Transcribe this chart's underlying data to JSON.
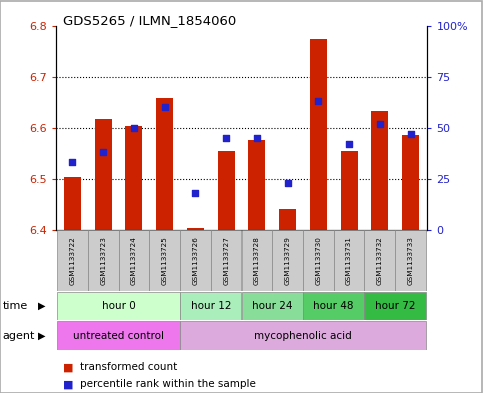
{
  "title": "GDS5265 / ILMN_1854060",
  "samples": [
    "GSM1133722",
    "GSM1133723",
    "GSM1133724",
    "GSM1133725",
    "GSM1133726",
    "GSM1133727",
    "GSM1133728",
    "GSM1133729",
    "GSM1133730",
    "GSM1133731",
    "GSM1133732",
    "GSM1133733"
  ],
  "bar_values": [
    6.504,
    6.617,
    6.603,
    6.658,
    6.403,
    6.554,
    6.575,
    6.44,
    6.773,
    6.554,
    6.632,
    6.585
  ],
  "bar_bottom": 6.4,
  "percentile_values": [
    33,
    38,
    50,
    60,
    18,
    45,
    45,
    23,
    63,
    42,
    52,
    47
  ],
  "ylim_left": [
    6.4,
    6.8
  ],
  "ylim_right": [
    0,
    100
  ],
  "yticks_left": [
    6.4,
    6.5,
    6.6,
    6.7,
    6.8
  ],
  "yticks_right": [
    0,
    25,
    50,
    75,
    100
  ],
  "ytick_labels_right": [
    "0",
    "25",
    "50",
    "75",
    "100%"
  ],
  "bar_color": "#cc2200",
  "percentile_color": "#2222cc",
  "time_groups": [
    {
      "label": "hour 0",
      "start": 0,
      "end": 3,
      "color": "#ccffcc"
    },
    {
      "label": "hour 12",
      "start": 4,
      "end": 5,
      "color": "#aaeebb"
    },
    {
      "label": "hour 24",
      "start": 6,
      "end": 7,
      "color": "#88dd99"
    },
    {
      "label": "hour 48",
      "start": 8,
      "end": 9,
      "color": "#55cc66"
    },
    {
      "label": "hour 72",
      "start": 10,
      "end": 11,
      "color": "#33bb44"
    }
  ],
  "agent_groups": [
    {
      "label": "untreated control",
      "start": 0,
      "end": 3,
      "color": "#ee77ee"
    },
    {
      "label": "mycophenolic acid",
      "start": 4,
      "end": 11,
      "color": "#ddaadd"
    }
  ],
  "legend_bar_label": "transformed count",
  "legend_pct_label": "percentile rank within the sample",
  "time_label": "time",
  "agent_label": "agent",
  "sample_bg_color": "#cccccc",
  "bar_width": 0.55,
  "xlim": [
    -0.55,
    11.55
  ]
}
